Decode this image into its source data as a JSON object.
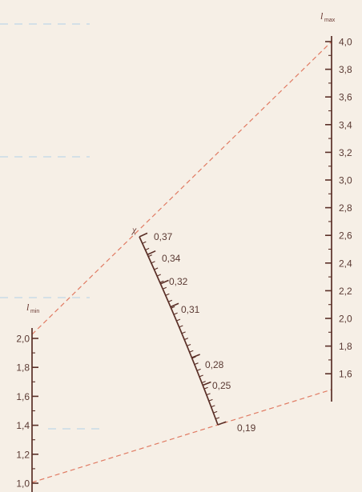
{
  "diagram": {
    "right_scale": {
      "symbol": "l",
      "subscript": "max",
      "ticks": [
        "4,0",
        "3,8",
        "3,6",
        "3,4",
        "3,2",
        "3,0",
        "2,8",
        "2,6",
        "2,4",
        "2,2",
        "2,0",
        "1,8",
        "1,6"
      ]
    },
    "left_scale": {
      "symbol": "l",
      "subscript": "min",
      "ticks": [
        "2,0",
        "1,8",
        "1,6",
        "1,4",
        "1,2",
        "1,0"
      ]
    },
    "middle_scale": {
      "symbol": "χ",
      "labels": [
        "0,37",
        "0,34",
        "0,32",
        "0,31",
        "0,28",
        "0,25",
        "0,19"
      ]
    },
    "colors": {
      "scale": "#5a2f27",
      "label": "#5a3a33",
      "key_line": "#e07b63",
      "background": "#f6efe6"
    }
  }
}
